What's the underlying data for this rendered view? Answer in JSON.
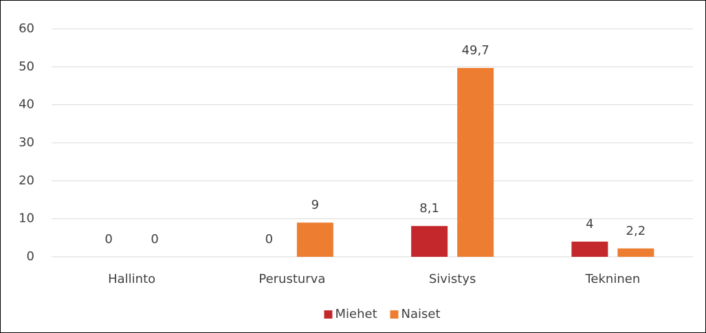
{
  "chart_data": {
    "type": "bar",
    "categories": [
      "Hallinto",
      "Perusturva",
      "Sivistys",
      "Tekninen"
    ],
    "series": [
      {
        "name": "Miehet",
        "color": "#c5282c",
        "values": [
          0,
          0,
          8.1,
          4
        ],
        "value_labels": [
          "0",
          "0",
          "8,1",
          "4"
        ]
      },
      {
        "name": "Naiset",
        "color": "#ed7d31",
        "values": [
          0,
          9,
          49.7,
          2.2
        ],
        "value_labels": [
          "0",
          "9",
          "49,7",
          "2,2"
        ]
      }
    ],
    "ylim": [
      0,
      60
    ],
    "yticks": [
      0,
      10,
      20,
      30,
      40,
      50,
      60
    ],
    "grid": true,
    "legend": "bottom"
  }
}
